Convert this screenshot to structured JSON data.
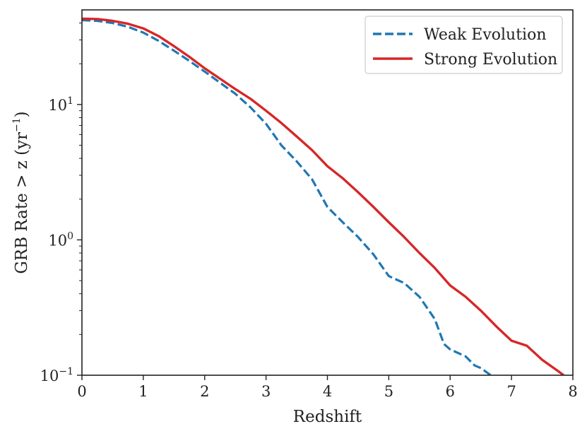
{
  "chart_data": {
    "type": "line",
    "title": "",
    "xlabel": "Redshift",
    "ylabel": {
      "main": "GRB Rate > z (yr",
      "exponent": "−1",
      "close": ")"
    },
    "xlim": [
      0,
      8
    ],
    "ylim": [
      0.1,
      50
    ],
    "yscale": "log",
    "x_ticks": [
      "0",
      "1",
      "2",
      "3",
      "4",
      "5",
      "6",
      "7",
      "8"
    ],
    "y_ticks": [
      {
        "base": "10",
        "exp": "−1",
        "value": 0.1
      },
      {
        "base": "10",
        "exp": "0",
        "value": 1
      },
      {
        "base": "10",
        "exp": "1",
        "value": 10
      }
    ],
    "grid": false,
    "legend_position": "top-right",
    "series": [
      {
        "name": "Weak Evolution",
        "color": "#1f77b4",
        "style": "dashed",
        "points": [
          [
            0,
            42
          ],
          [
            0.25,
            41.5
          ],
          [
            0.5,
            40
          ],
          [
            0.75,
            37.5
          ],
          [
            1,
            34
          ],
          [
            1.25,
            29.5
          ],
          [
            1.5,
            25
          ],
          [
            1.75,
            21
          ],
          [
            2,
            17.5
          ],
          [
            2.25,
            14.5
          ],
          [
            2.5,
            12
          ],
          [
            2.75,
            9.5
          ],
          [
            3,
            7.2
          ],
          [
            3.25,
            5.0
          ],
          [
            3.5,
            3.8
          ],
          [
            3.75,
            2.8
          ],
          [
            4,
            1.75
          ],
          [
            4.25,
            1.35
          ],
          [
            4.5,
            1.05
          ],
          [
            4.75,
            0.78
          ],
          [
            5,
            0.54
          ],
          [
            5.25,
            0.48
          ],
          [
            5.5,
            0.38
          ],
          [
            5.75,
            0.26
          ],
          [
            5.9,
            0.17
          ],
          [
            6.0,
            0.155
          ],
          [
            6.25,
            0.138
          ],
          [
            6.4,
            0.118
          ],
          [
            6.5,
            0.113
          ],
          [
            6.66,
            0.1
          ]
        ]
      },
      {
        "name": "Strong Evolution",
        "color": "#d62728",
        "style": "solid",
        "points": [
          [
            0,
            43
          ],
          [
            0.25,
            42.8
          ],
          [
            0.5,
            41.5
          ],
          [
            0.75,
            39.5
          ],
          [
            1,
            36.5
          ],
          [
            1.25,
            32
          ],
          [
            1.5,
            27
          ],
          [
            1.75,
            22.5
          ],
          [
            2,
            18.5
          ],
          [
            2.25,
            15.5
          ],
          [
            2.5,
            13
          ],
          [
            2.75,
            11
          ],
          [
            3,
            9.0
          ],
          [
            3.25,
            7.3
          ],
          [
            3.5,
            5.8
          ],
          [
            3.75,
            4.6
          ],
          [
            4,
            3.5
          ],
          [
            4.25,
            2.85
          ],
          [
            4.5,
            2.25
          ],
          [
            4.75,
            1.75
          ],
          [
            5,
            1.35
          ],
          [
            5.25,
            1.05
          ],
          [
            5.5,
            0.8
          ],
          [
            5.75,
            0.62
          ],
          [
            6,
            0.46
          ],
          [
            6.25,
            0.38
          ],
          [
            6.5,
            0.3
          ],
          [
            6.75,
            0.23
          ],
          [
            7,
            0.18
          ],
          [
            7.25,
            0.165
          ],
          [
            7.5,
            0.13
          ],
          [
            7.75,
            0.108
          ],
          [
            7.85,
            0.1
          ]
        ]
      }
    ]
  }
}
